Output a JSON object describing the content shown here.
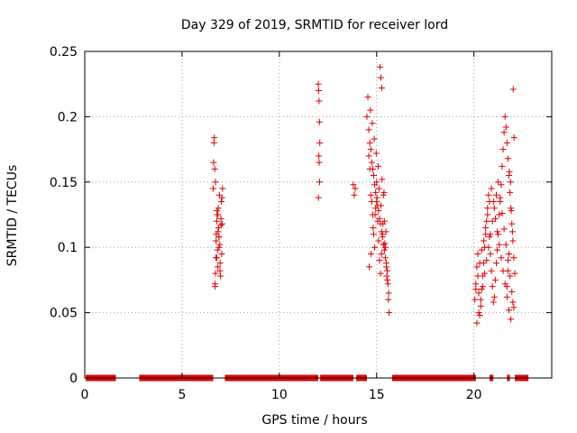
{
  "chart_data": {
    "type": "scatter",
    "title": "Day 329 of 2019, SRMTID for receiver lord",
    "xlabel": "GPS time / hours",
    "ylabel": "SRMTID / TECUs",
    "xlim": [
      0,
      24
    ],
    "ylim": [
      0,
      0.25
    ],
    "xticks": [
      0,
      5,
      10,
      15,
      20
    ],
    "xtick_labels": [
      "0",
      "5",
      "10",
      "15",
      "20"
    ],
    "yticks": [
      0,
      0.05,
      0.1,
      0.15,
      0.2,
      0.25
    ],
    "ytick_labels": [
      "0",
      "0.05",
      "0.1",
      "0.15",
      "0.2",
      "0.25"
    ],
    "grid": true,
    "marker": "+",
    "marker_color": "#e00000",
    "zero_segments": [
      [
        0.05,
        1.6
      ],
      [
        2.8,
        6.6
      ],
      [
        7.2,
        12.0
      ],
      [
        12.1,
        13.8
      ],
      [
        13.95,
        14.5
      ],
      [
        15.8,
        20.1
      ],
      [
        20.8,
        21.0
      ],
      [
        21.7,
        21.85
      ],
      [
        22.1,
        22.8
      ]
    ],
    "series": [
      {
        "name": "SRMTID",
        "x": [
          6.6,
          6.62,
          6.64,
          6.66,
          6.68,
          6.7,
          6.72,
          6.74,
          6.76,
          6.78,
          6.8,
          6.82,
          6.84,
          6.86,
          6.88,
          6.9,
          6.92,
          6.94,
          6.96,
          6.98,
          7.0,
          7.02,
          7.04,
          7.06,
          7.08,
          6.7,
          6.75,
          6.8,
          6.85,
          6.9,
          6.95,
          7.0,
          7.05,
          6.72,
          6.78,
          6.84,
          6.9,
          12.0,
          12.02,
          12.04,
          12.06,
          12.08,
          12.03,
          12.05,
          12.07,
          12.01,
          13.8,
          13.85,
          13.9,
          14.5,
          14.55,
          14.6,
          14.65,
          14.7,
          14.75,
          14.8,
          14.85,
          14.9,
          14.95,
          15.0,
          15.05,
          15.1,
          15.15,
          15.2,
          15.25,
          15.3,
          15.35,
          15.4,
          15.45,
          15.5,
          15.55,
          15.6,
          14.6,
          14.7,
          14.8,
          14.9,
          15.0,
          15.1,
          15.2,
          15.3,
          15.4,
          15.5,
          14.65,
          14.75,
          14.85,
          14.95,
          15.05,
          15.15,
          15.25,
          15.35,
          15.45,
          15.55,
          14.62,
          14.72,
          14.82,
          14.92,
          15.02,
          15.12,
          15.22,
          15.32,
          15.42,
          15.52,
          15.18,
          15.22,
          15.26,
          14.68,
          14.78,
          14.88,
          14.98,
          15.08,
          15.28,
          15.38,
          15.48,
          15.58,
          15.62,
          15.64,
          20.05,
          20.1,
          20.15,
          20.2,
          20.25,
          20.3,
          20.35,
          20.4,
          20.45,
          20.5,
          20.55,
          20.6,
          20.65,
          20.7,
          20.75,
          20.8,
          20.85,
          20.9,
          20.95,
          21.0,
          21.05,
          21.1,
          21.15,
          21.2,
          21.25,
          21.3,
          21.35,
          21.4,
          21.45,
          21.5,
          21.55,
          21.6,
          21.65,
          21.7,
          21.75,
          21.8,
          21.85,
          21.9,
          21.95,
          22.0,
          22.05,
          22.1,
          20.1,
          20.2,
          20.3,
          20.4,
          20.5,
          20.6,
          20.7,
          20.8,
          20.9,
          21.0,
          21.1,
          21.2,
          21.3,
          21.4,
          21.5,
          21.6,
          21.7,
          21.8,
          21.9,
          22.0,
          20.15,
          20.25,
          20.35,
          20.45,
          20.55,
          20.65,
          20.75,
          20.85,
          20.95,
          21.05,
          21.15,
          21.25,
          21.35,
          21.45,
          21.55,
          21.65,
          21.75,
          21.85,
          21.95,
          22.05,
          21.7,
          21.75,
          21.8,
          22.02,
          22.06,
          21.82,
          21.88,
          21.92,
          21.98
        ],
        "y": [
          0.145,
          0.165,
          0.18,
          0.184,
          0.16,
          0.072,
          0.08,
          0.092,
          0.11,
          0.12,
          0.125,
          0.098,
          0.085,
          0.13,
          0.115,
          0.108,
          0.14,
          0.102,
          0.088,
          0.078,
          0.122,
          0.135,
          0.095,
          0.118,
          0.145,
          0.07,
          0.105,
          0.128,
          0.112,
          0.1,
          0.082,
          0.117,
          0.138,
          0.15,
          0.092,
          0.125,
          0.108,
          0.225,
          0.22,
          0.212,
          0.196,
          0.18,
          0.17,
          0.165,
          0.15,
          0.138,
          0.148,
          0.14,
          0.145,
          0.2,
          0.215,
          0.17,
          0.16,
          0.14,
          0.135,
          0.125,
          0.11,
          0.1,
          0.13,
          0.15,
          0.12,
          0.105,
          0.09,
          0.08,
          0.095,
          0.11,
          0.14,
          0.12,
          0.1,
          0.085,
          0.075,
          0.06,
          0.19,
          0.175,
          0.16,
          0.148,
          0.135,
          0.128,
          0.118,
          0.108,
          0.098,
          0.088,
          0.18,
          0.165,
          0.155,
          0.142,
          0.132,
          0.122,
          0.112,
          0.102,
          0.092,
          0.082,
          0.085,
          0.095,
          0.115,
          0.125,
          0.138,
          0.145,
          0.132,
          0.118,
          0.103,
          0.078,
          0.238,
          0.23,
          0.222,
          0.205,
          0.195,
          0.183,
          0.172,
          0.162,
          0.152,
          0.142,
          0.112,
          0.072,
          0.065,
          0.05,
          0.06,
          0.072,
          0.085,
          0.095,
          0.065,
          0.048,
          0.055,
          0.068,
          0.078,
          0.088,
          0.1,
          0.11,
          0.12,
          0.13,
          0.14,
          0.108,
          0.095,
          0.082,
          0.07,
          0.058,
          0.062,
          0.075,
          0.088,
          0.098,
          0.11,
          0.125,
          0.135,
          0.148,
          0.162,
          0.175,
          0.188,
          0.2,
          0.192,
          0.18,
          0.168,
          0.155,
          0.142,
          0.13,
          0.118,
          0.105,
          0.092,
          0.08,
          0.068,
          0.078,
          0.088,
          0.098,
          0.105,
          0.115,
          0.125,
          0.135,
          0.145,
          0.135,
          0.122,
          0.112,
          0.102,
          0.092,
          0.082,
          0.072,
          0.062,
          0.052,
          0.045,
          0.058,
          0.042,
          0.05,
          0.06,
          0.07,
          0.08,
          0.09,
          0.1,
          0.11,
          0.12,
          0.13,
          0.14,
          0.15,
          0.138,
          0.126,
          0.114,
          0.102,
          0.09,
          0.078,
          0.066,
          0.054,
          0.07,
          0.082,
          0.095,
          0.221,
          0.184,
          0.158,
          0.15,
          0.128,
          0.112
        ]
      }
    ]
  }
}
